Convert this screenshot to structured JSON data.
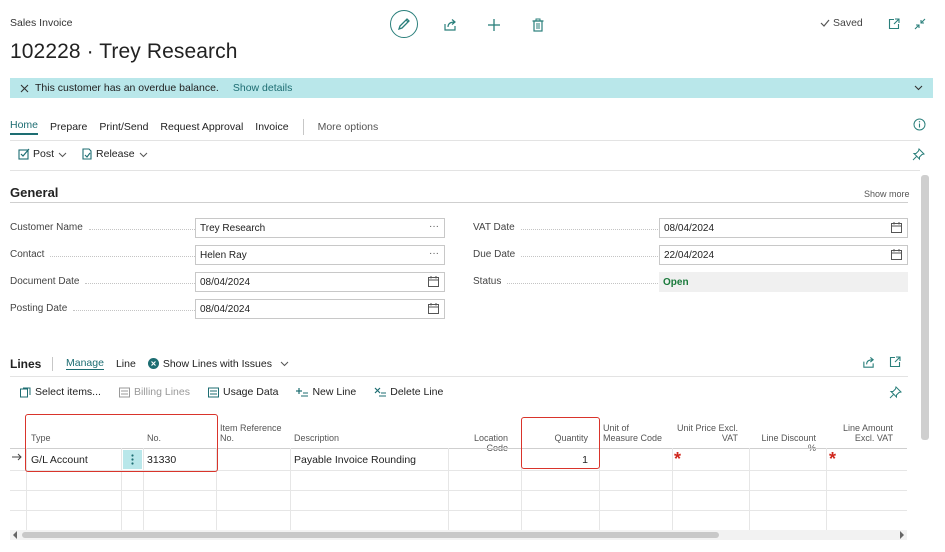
{
  "header": {
    "caption": "Sales Invoice",
    "title": "102228 · Trey Research",
    "saved_label": "Saved"
  },
  "notification": {
    "message": "This customer has an overdue balance.",
    "link": "Show details"
  },
  "action_tabs": {
    "home": "Home",
    "prepare": "Prepare",
    "print_send": "Print/Send",
    "request_approval": "Request Approval",
    "invoice": "Invoice",
    "more_options": "More options"
  },
  "sub_actions": {
    "post": "Post",
    "release": "Release"
  },
  "general": {
    "title": "General",
    "show_more": "Show more",
    "left_fields": [
      {
        "label": "Customer Name",
        "value": "Trey Research"
      },
      {
        "label": "Contact",
        "value": "Helen Ray"
      },
      {
        "label": "Document Date",
        "value": "08/04/2024"
      },
      {
        "label": "Posting Date",
        "value": "08/04/2024"
      }
    ],
    "right_fields": [
      {
        "label": "VAT Date",
        "value": "08/04/2024"
      },
      {
        "label": "Due Date",
        "value": "22/04/2024"
      },
      {
        "label": "Status",
        "value": "Open"
      }
    ]
  },
  "lines": {
    "title": "Lines",
    "tabs": {
      "manage": "Manage",
      "line": "Line",
      "show_issues": "Show Lines with Issues"
    },
    "actions": {
      "select_items": "Select items...",
      "billing_lines": "Billing Lines",
      "usage_data": "Usage Data",
      "new_line": "New Line",
      "delete_line": "Delete Line"
    },
    "columns": {
      "type": "Type",
      "no": "No.",
      "item_ref_1": "Item Reference",
      "item_ref_2": "No.",
      "description": "Description",
      "location": "Location Code",
      "quantity": "Quantity",
      "uom_1": "Unit of",
      "uom_2": "Measure Code",
      "unit_price_1": "Unit Price Excl.",
      "unit_price_2": "VAT",
      "line_discount": "Line Discount %",
      "line_amount_1": "Line Amount",
      "line_amount_2": "Excl. VAT"
    },
    "row": {
      "type": "G/L Account",
      "no": "31330",
      "description": "Payable Invoice Rounding",
      "quantity": "1",
      "required_marker": "*"
    }
  },
  "colors": {
    "accent": "#1d6d72",
    "notify_bg": "#b9e7ea",
    "highlight": "#d9342b",
    "status_open": "#1a7a3b"
  }
}
